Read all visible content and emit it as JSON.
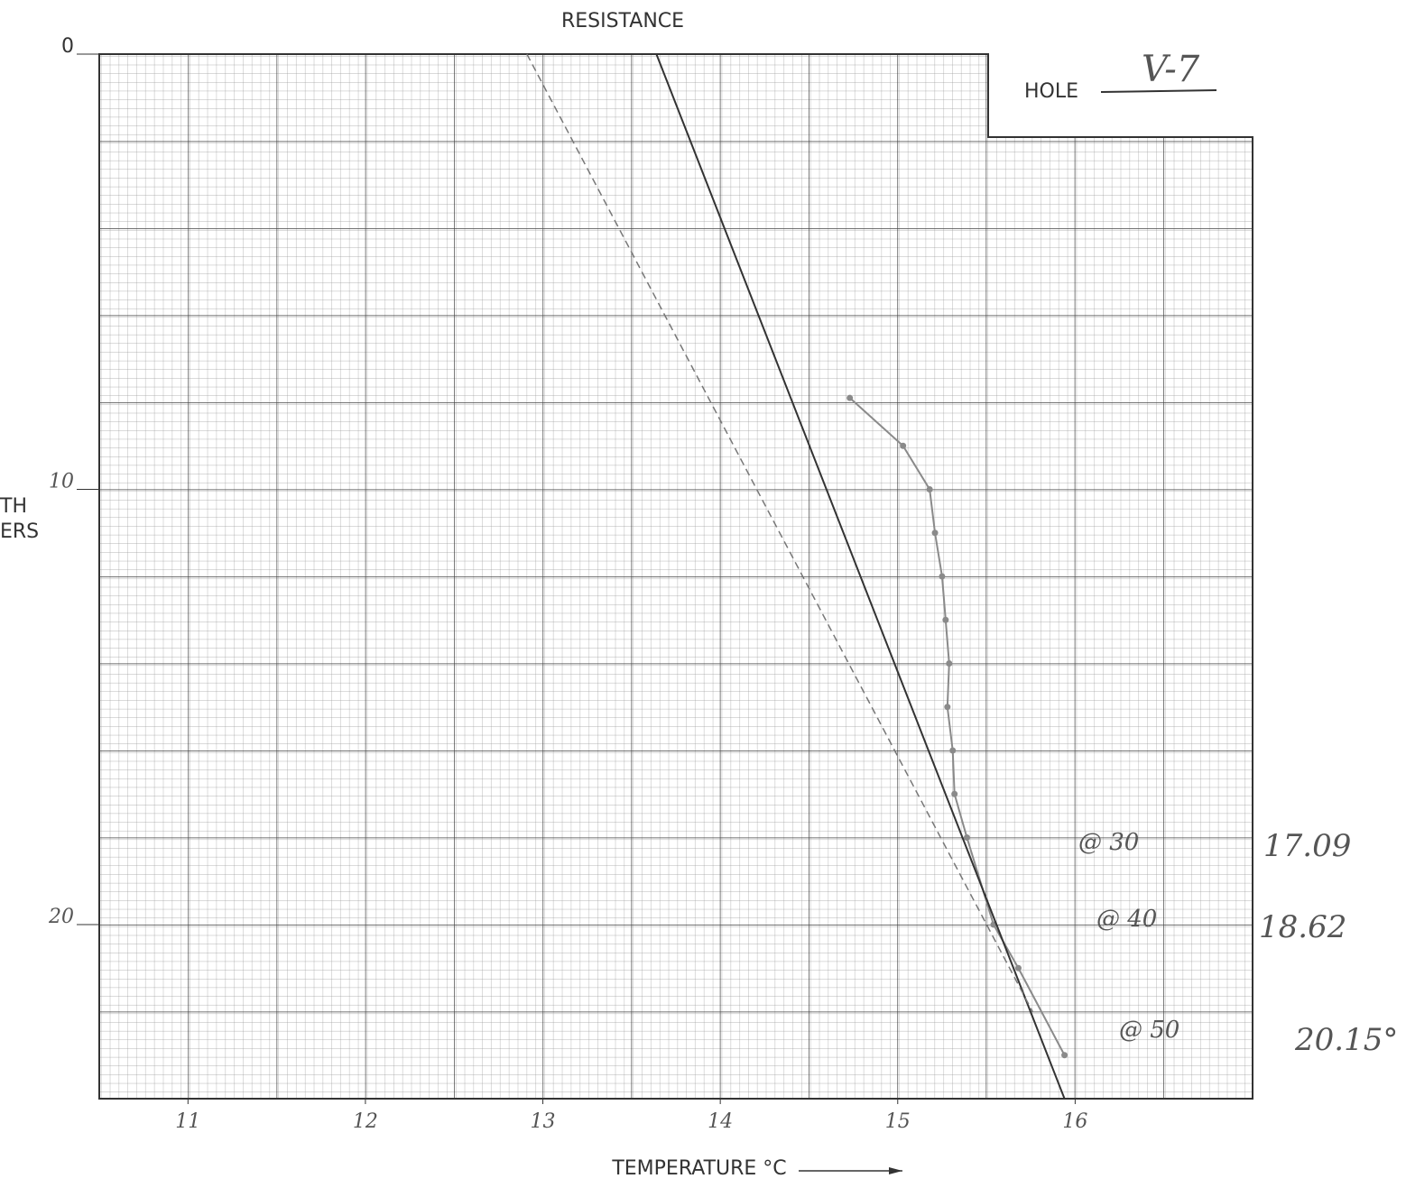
{
  "chart_data": {
    "type": "line",
    "title": "RESISTANCE",
    "x_label": "TEMPERATURE °C",
    "y_label": [
      "TH",
      "ERS"
    ],
    "hole_label": "HOLE",
    "hole": "V-7",
    "xlim": [
      10.5,
      17
    ],
    "ylim": [
      0,
      24
    ],
    "y_inverted": true,
    "xticks": [
      11,
      12,
      13,
      14,
      15,
      16
    ],
    "yticks": [
      0,
      10,
      20
    ],
    "grid": true,
    "series": [
      {
        "color": "#8a8a8a",
        "markers": true,
        "dashed": false,
        "x": [
          14.73,
          15.03,
          15.18,
          15.21,
          15.25,
          15.27,
          15.29,
          15.28,
          15.31,
          15.32,
          15.39,
          15.54,
          15.68,
          15.94
        ],
        "values": [
          7.9,
          9,
          10,
          11,
          12,
          13,
          14,
          15,
          16,
          17,
          18,
          20,
          21,
          23
        ]
      },
      {
        "color": "#333333",
        "markers": false,
        "dashed": false,
        "x": [
          13.64,
          15.94
        ],
        "values": [
          0,
          24
        ]
      },
      {
        "color": "#777777",
        "markers": false,
        "dashed": true,
        "x": [
          12.91,
          15.76
        ],
        "values": [
          0,
          22
        ]
      }
    ],
    "annotations": [
      "@ 30",
      "17.09",
      "@ 40",
      "18.62",
      "@ 50",
      "20.15°"
    ]
  }
}
